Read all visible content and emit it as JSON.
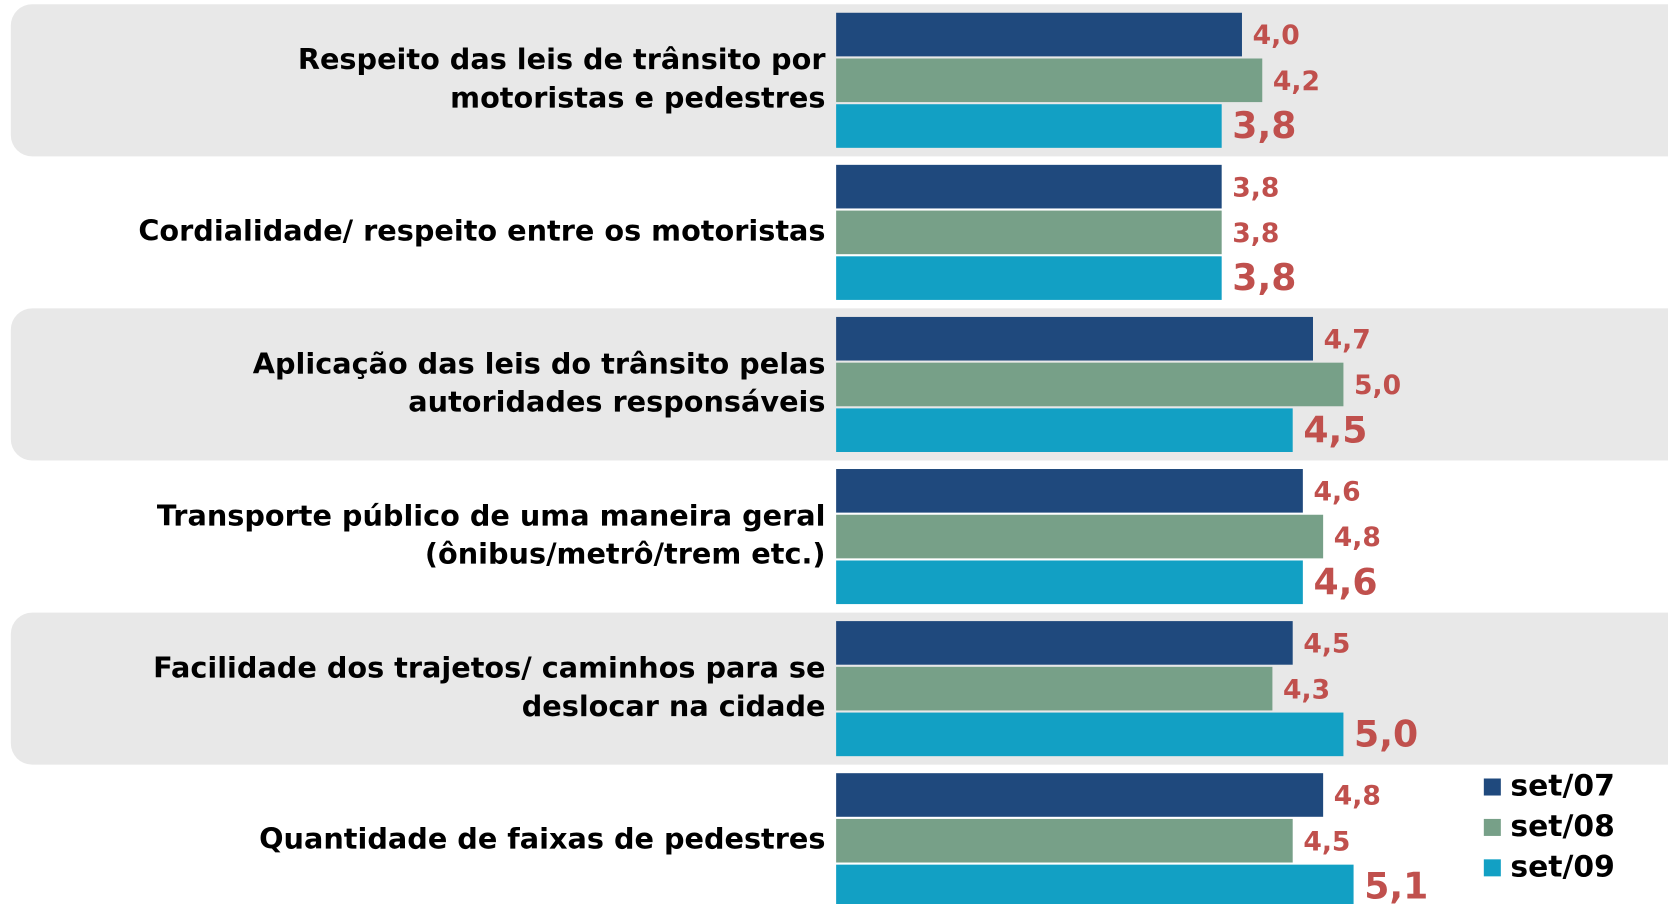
{
  "chart_data": {
    "type": "bar",
    "orientation": "horizontal",
    "categories": [
      [
        "Respeito das leis de trânsito por",
        "motoristas e pedestres"
      ],
      [
        "Cordialidade/ respeito entre os motoristas"
      ],
      [
        "Aplicação das leis do trânsito pelas",
        "autoridades responsáveis"
      ],
      [
        "Transporte público de uma maneira geral",
        "(ônibus/metrô/trem etc.)"
      ],
      [
        "Facilidade dos trajetos/ caminhos para se",
        "deslocar na cidade"
      ],
      [
        "Quantidade de faixas de pedestres"
      ]
    ],
    "series": [
      {
        "name": "set/07",
        "color": "#1f497d",
        "values": [
          4.0,
          3.8,
          4.7,
          4.6,
          4.5,
          4.8
        ],
        "value_labels": [
          "4,0",
          "3,8",
          "4,7",
          "4,6",
          "4,5",
          "4,8"
        ]
      },
      {
        "name": "set/08",
        "color": "#77a088",
        "values": [
          4.2,
          3.8,
          5.0,
          4.8,
          4.3,
          4.5
        ],
        "value_labels": [
          "4,2",
          "3,8",
          "5,0",
          "4,8",
          "4,3",
          "4,5"
        ]
      },
      {
        "name": "set/09",
        "color": "#12a0c4",
        "values": [
          3.8,
          3.8,
          4.5,
          4.6,
          5.0,
          5.1
        ],
        "value_labels": [
          "3,8",
          "3,8",
          "4,5",
          "4,6",
          "5,0",
          "5,1"
        ]
      }
    ],
    "legend": "lower right",
    "label_color": "#c0504d"
  }
}
